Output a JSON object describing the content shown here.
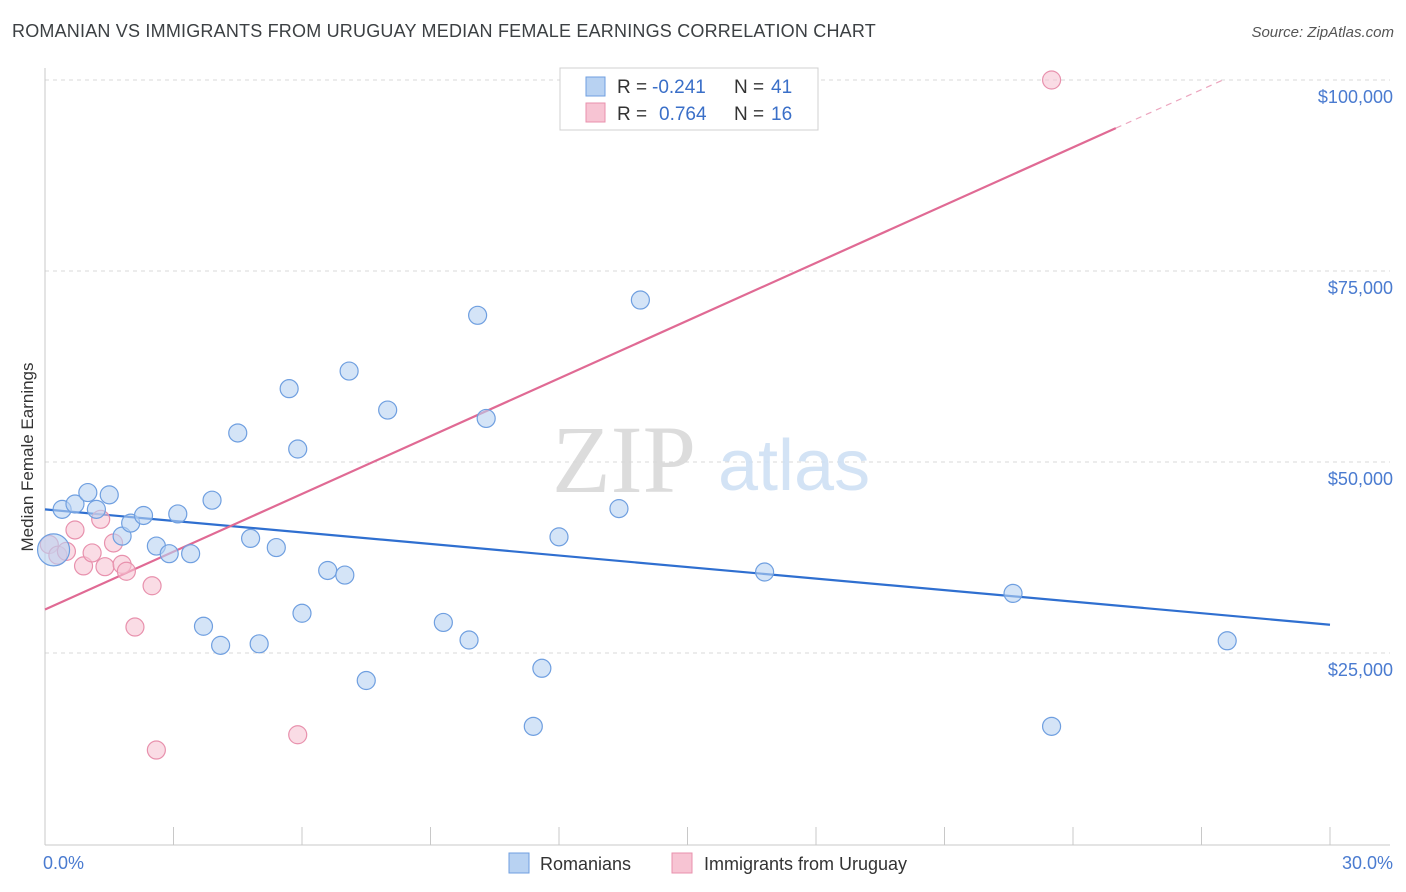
{
  "title": "ROMANIAN VS IMMIGRANTS FROM URUGUAY MEDIAN FEMALE EARNINGS CORRELATION CHART",
  "source": "Source: ZipAtlas.com",
  "watermark": {
    "part1": "ZIP",
    "part2": "atlas"
  },
  "legend_top": [
    {
      "r_label": "R =",
      "r_value": "-0.241",
      "n_label": "N =",
      "n_value": "41"
    },
    {
      "r_label": "R =",
      "r_value": "0.764",
      "n_label": "N =",
      "n_value": "16"
    }
  ],
  "colors": {
    "romanian_fill": "#b8d2f2",
    "romanian_stroke": "#6f9fe0",
    "romanian_line": "#2f6fd0",
    "uruguay_fill": "#f7c4d3",
    "uruguay_stroke": "#e891ad",
    "uruguay_line": "#e06a94",
    "grid": "#d8d8d8",
    "tick_label": "#4a7bd0"
  },
  "chart_data": {
    "type": "scatter",
    "title": "ROMANIAN VS IMMIGRANTS FROM URUGUAY MEDIAN FEMALE EARNINGS CORRELATION CHART",
    "xlabel": "",
    "ylabel": "Median Female Earnings",
    "xlim": [
      0,
      30
    ],
    "ylim": [
      3000,
      104000
    ],
    "x_tick_labels": [
      "0.0%",
      "30.0%"
    ],
    "y_ticks": [
      25000,
      50000,
      75000,
      100000
    ],
    "y_tick_labels": [
      "$25,000",
      "$50,000",
      "$75,000",
      "$100,000"
    ],
    "grid": true,
    "legend_position": "top-center",
    "series": [
      {
        "name": "Romanians",
        "points": [
          [
            0.2,
            38500
          ],
          [
            0.4,
            43800
          ],
          [
            0.7,
            44500
          ],
          [
            1.0,
            46000
          ],
          [
            1.2,
            43800
          ],
          [
            1.5,
            45700
          ],
          [
            1.8,
            40300
          ],
          [
            2.0,
            42000
          ],
          [
            2.3,
            43000
          ],
          [
            2.6,
            39000
          ],
          [
            2.9,
            38000
          ],
          [
            3.1,
            43200
          ],
          [
            3.4,
            38000
          ],
          [
            3.7,
            28500
          ],
          [
            3.9,
            45000
          ],
          [
            4.1,
            26000
          ],
          [
            4.5,
            53800
          ],
          [
            4.8,
            40000
          ],
          [
            5.0,
            26200
          ],
          [
            5.4,
            38800
          ],
          [
            5.7,
            59600
          ],
          [
            5.9,
            51700
          ],
          [
            6.0,
            30200
          ],
          [
            6.6,
            35800
          ],
          [
            7.0,
            35200
          ],
          [
            7.1,
            61900
          ],
          [
            7.5,
            21400
          ],
          [
            8.0,
            56800
          ],
          [
            9.3,
            29000
          ],
          [
            9.9,
            26700
          ],
          [
            10.1,
            69200
          ],
          [
            10.3,
            55700
          ],
          [
            11.4,
            15400
          ],
          [
            11.6,
            23000
          ],
          [
            12.0,
            40200
          ],
          [
            13.4,
            43900
          ],
          [
            13.9,
            71200
          ],
          [
            16.8,
            35600
          ],
          [
            22.6,
            32800
          ],
          [
            23.5,
            15400
          ],
          [
            27.6,
            26600
          ]
        ],
        "trend": {
          "x": [
            0,
            30
          ],
          "y": [
            43800,
            28700
          ]
        }
      },
      {
        "name": "Immigrants from Uruguay",
        "points": [
          [
            0.1,
            39200
          ],
          [
            0.3,
            37800
          ],
          [
            0.5,
            38300
          ],
          [
            0.7,
            41100
          ],
          [
            0.9,
            36400
          ],
          [
            1.1,
            38100
          ],
          [
            1.3,
            42500
          ],
          [
            1.4,
            36300
          ],
          [
            1.6,
            39400
          ],
          [
            1.8,
            36600
          ],
          [
            1.9,
            35700
          ],
          [
            2.1,
            28400
          ],
          [
            2.5,
            33800
          ],
          [
            2.6,
            12300
          ],
          [
            5.9,
            14300
          ],
          [
            23.5,
            100000
          ]
        ],
        "trend": {
          "x": [
            0,
            25
          ],
          "y": [
            30700,
            93700
          ],
          "dashed_to": {
            "x": 27.5,
            "y": 100000
          }
        }
      }
    ]
  },
  "legend_bottom": [
    "Romanians",
    "Immigrants from Uruguay"
  ]
}
